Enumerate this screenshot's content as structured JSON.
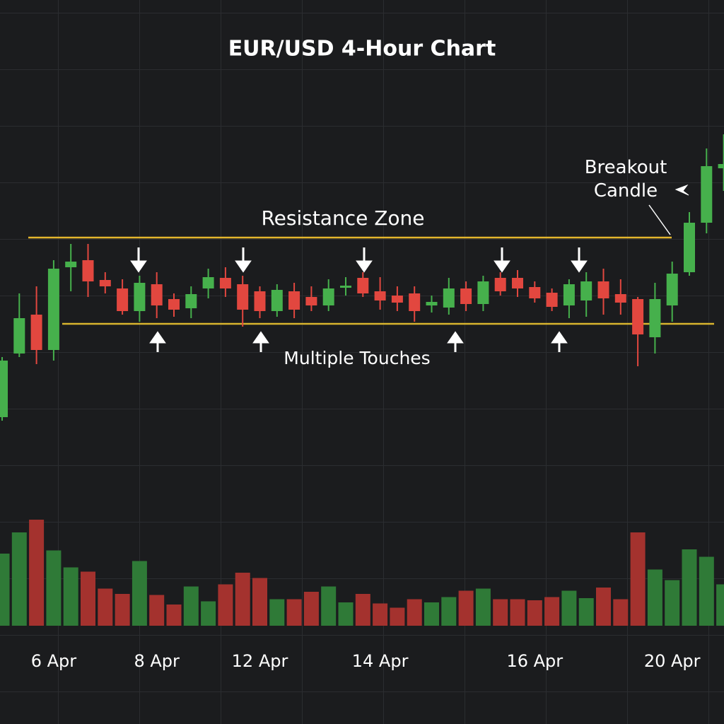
{
  "chart_data": {
    "type": "candlestick",
    "title": "EUR/USD 4-Hour Chart",
    "categories": [
      null,
      null,
      null,
      "6 Apr",
      null,
      null,
      null,
      null,
      null,
      "8 Apr",
      null,
      null,
      null,
      null,
      null,
      "12 Apr",
      null,
      null,
      null,
      null,
      null,
      null,
      "14 Apr",
      null,
      null,
      null,
      null,
      null,
      null,
      null,
      null,
      "16 Apr",
      null,
      null,
      null,
      null,
      null,
      null,
      null,
      "20 Apr",
      null,
      null,
      null
    ],
    "open": [
      1.0,
      10.0,
      15.5,
      10.5,
      22.2,
      23.2,
      20.4,
      19.2,
      16.0,
      19.8,
      17.7,
      16.4,
      19.2,
      20.7,
      19.8,
      18.8,
      16.0,
      18.8,
      18.0,
      16.8,
      19.3,
      20.7,
      18.8,
      18.2,
      18.5,
      16.8,
      16.5,
      19.2,
      17.0,
      20.7,
      20.7,
      19.4,
      18.6,
      16.8,
      17.5,
      20.2,
      18.4,
      17.7,
      12.3,
      16.8,
      21.5,
      28.5,
      36.2
    ],
    "high": [
      9.5,
      18.5,
      19.5,
      23.2,
      25.5,
      25.5,
      21.5,
      20.5,
      21.0,
      21.5,
      18.5,
      19.5,
      22.0,
      22.2,
      21.0,
      19.5,
      19.8,
      20.0,
      19.5,
      20.5,
      20.8,
      21.5,
      20.8,
      19.5,
      19.5,
      18.2,
      20.7,
      20.2,
      21.0,
      21.5,
      21.8,
      20.2,
      19.2,
      20.5,
      21.5,
      22.0,
      20.5,
      18.0,
      20.0,
      23.0,
      30.0,
      39.0,
      41.0
    ],
    "low": [
      0.5,
      9.5,
      8.5,
      9.0,
      18.8,
      18.0,
      18.5,
      15.5,
      14.5,
      15.0,
      15.2,
      15.0,
      17.8,
      18.0,
      13.8,
      15.0,
      15.2,
      15.0,
      16.0,
      16.0,
      18.2,
      18.0,
      16.2,
      16.0,
      14.5,
      15.8,
      15.5,
      16.0,
      16.0,
      18.2,
      18.0,
      17.2,
      16.0,
      15.0,
      15.2,
      15.5,
      15.5,
      8.2,
      10.0,
      14.5,
      21.0,
      27.0,
      33.0
    ],
    "close": [
      9.0,
      15.0,
      10.5,
      22.0,
      23.0,
      20.2,
      19.5,
      16.0,
      20.0,
      16.8,
      16.2,
      18.4,
      20.8,
      19.2,
      16.2,
      16.0,
      19.0,
      16.2,
      16.8,
      19.2,
      19.6,
      18.5,
      17.5,
      17.2,
      16.0,
      17.3,
      19.2,
      17.0,
      20.2,
      18.8,
      19.2,
      17.8,
      16.6,
      19.8,
      20.2,
      17.8,
      17.2,
      12.7,
      17.7,
      21.3,
      28.5,
      36.5,
      36.8
    ],
    "volume": [
      68,
      88,
      100,
      71,
      55,
      51,
      35,
      30,
      61,
      29,
      20,
      37,
      23,
      39,
      50,
      45,
      25,
      25,
      32,
      37,
      22,
      30,
      21,
      17,
      25,
      22,
      27,
      33,
      35,
      25,
      25,
      24,
      27,
      33,
      26,
      36,
      25,
      88,
      53,
      43,
      72,
      65,
      39
    ],
    "ylim": [
      0,
      45
    ],
    "volume_ylim": [
      0,
      100
    ],
    "up_color": "#46b04c",
    "down_color": "#e2473f",
    "volume_up_color": "#2f7a37",
    "volume_down_color": "#a4322e",
    "resistance_level": 26.4,
    "resistance_color": "#e3b62c",
    "support_level": 14.2,
    "support_color": "#d9b42e",
    "annotations": {
      "resistance": "Resistance Zone",
      "touches": "Multiple Touches",
      "breakout": "Breakout Candle"
    }
  }
}
